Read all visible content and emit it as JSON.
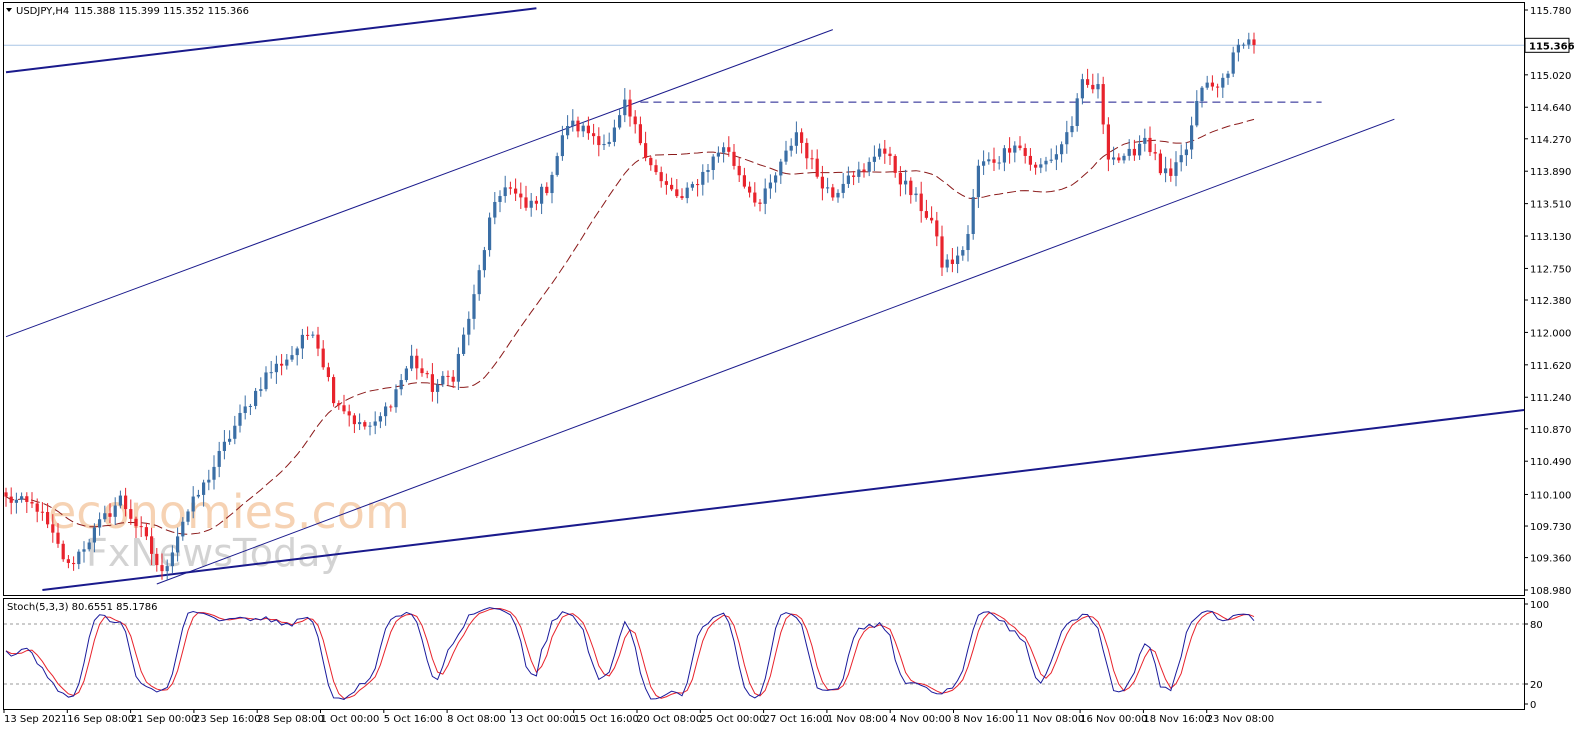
{
  "header": {
    "symbol_label": "USDJPY,H4",
    "ohlc": "115.388 115.399 115.352 115.366"
  },
  "indicator": {
    "label": "Stoch(5,3,3) 80.6551 85.1786",
    "levels": [
      "100",
      "80",
      "20",
      "0"
    ]
  },
  "watermark": {
    "line1": "economies.com",
    "line2": "FxNewsToday"
  },
  "colors": {
    "bull": "#3a6ea5",
    "bear": "#e8232c",
    "trendline": "#1a1a8c",
    "ma": "#8b1a1a",
    "stoch_main": "#1a1a9c",
    "stoch_signal": "#e8232c"
  },
  "chart_data": {
    "type": "candlestick",
    "symbol": "USDJPY",
    "timeframe": "H4",
    "ylim": [
      108.98,
      115.78
    ],
    "current_price": "115.366",
    "y_ticks": [
      "115.780",
      "115.020",
      "114.640",
      "114.270",
      "113.890",
      "113.510",
      "113.130",
      "112.750",
      "112.380",
      "112.000",
      "111.620",
      "111.240",
      "110.870",
      "110.490",
      "110.100",
      "109.730",
      "109.360",
      "108.980"
    ],
    "x_ticks": [
      "13 Sep 2021",
      "16 Sep 08:00",
      "21 Sep 00:00",
      "23 Sep 16:00",
      "28 Sep 08:00",
      "1 Oct 00:00",
      "5 Oct 16:00",
      "8 Oct 08:00",
      "13 Oct 00:00",
      "15 Oct 16:00",
      "20 Oct 08:00",
      "25 Oct 00:00",
      "27 Oct 16:00",
      "1 Nov 08:00",
      "4 Nov 00:00",
      "8 Nov 16:00",
      "11 Nov 08:00",
      "16 Nov 00:00",
      "18 Nov 16:00",
      "23 Nov 08:00"
    ],
    "anchors": [
      [
        0,
        110.05
      ],
      [
        6,
        109.95
      ],
      [
        12,
        109.25
      ],
      [
        18,
        109.75
      ],
      [
        22,
        110.05
      ],
      [
        27,
        109.55
      ],
      [
        30,
        109.15
      ],
      [
        34,
        109.8
      ],
      [
        38,
        110.2
      ],
      [
        44,
        110.9
      ],
      [
        50,
        111.5
      ],
      [
        55,
        111.75
      ],
      [
        59,
        112.05
      ],
      [
        63,
        111.25
      ],
      [
        68,
        110.9
      ],
      [
        71,
        110.9
      ],
      [
        74,
        111.2
      ],
      [
        78,
        111.7
      ],
      [
        82,
        111.35
      ],
      [
        86,
        111.5
      ],
      [
        90,
        112.4
      ],
      [
        93,
        113.3
      ],
      [
        96,
        113.75
      ],
      [
        100,
        113.45
      ],
      [
        104,
        113.7
      ],
      [
        108,
        114.45
      ],
      [
        112,
        114.35
      ],
      [
        116,
        114.2
      ],
      [
        119,
        114.65
      ],
      [
        122,
        114.25
      ],
      [
        126,
        113.75
      ],
      [
        130,
        113.55
      ],
      [
        135,
        113.95
      ],
      [
        138,
        114.2
      ],
      [
        142,
        113.75
      ],
      [
        145,
        113.5
      ],
      [
        149,
        113.95
      ],
      [
        152,
        114.35
      ],
      [
        156,
        113.85
      ],
      [
        159,
        113.6
      ],
      [
        162,
        113.9
      ],
      [
        165,
        113.85
      ],
      [
        168,
        114.2
      ],
      [
        172,
        113.8
      ],
      [
        175,
        113.55
      ],
      [
        178,
        113.3
      ],
      [
        180,
        112.8
      ],
      [
        183,
        112.85
      ],
      [
        185,
        113.15
      ],
      [
        187,
        113.95
      ],
      [
        191,
        114.05
      ],
      [
        194,
        114.25
      ],
      [
        198,
        113.9
      ],
      [
        202,
        114.1
      ],
      [
        205,
        114.45
      ],
      [
        207,
        114.9
      ],
      [
        210,
        114.85
      ],
      [
        212,
        114.1
      ],
      [
        215,
        114.0
      ],
      [
        219,
        114.3
      ],
      [
        222,
        113.9
      ],
      [
        224,
        113.8
      ],
      [
        227,
        114.15
      ],
      [
        230,
        114.9
      ],
      [
        233,
        114.85
      ],
      [
        235,
        115.1
      ],
      [
        238,
        115.45
      ],
      [
        240,
        115.37
      ]
    ],
    "trendlines": [
      {
        "name": "channel-upper",
        "points": [
          [
            0,
            111.95
          ],
          [
            159,
            115.55
          ]
        ]
      },
      {
        "name": "channel-lower",
        "points": [
          [
            29,
            109.05
          ],
          [
            267,
            114.5
          ]
        ]
      },
      {
        "name": "long-upper",
        "points": [
          [
            0,
            115.05
          ],
          [
            102,
            115.8
          ]
        ]
      },
      {
        "name": "long-lower",
        "points": [
          [
            7,
            108.98
          ],
          [
            300,
            111.15
          ]
        ]
      }
    ],
    "resistance": {
      "value": 114.7,
      "from": 122,
      "to": 253
    },
    "stoch_ylim": [
      0,
      100
    ],
    "stoch_levels": [
      20,
      80
    ]
  }
}
